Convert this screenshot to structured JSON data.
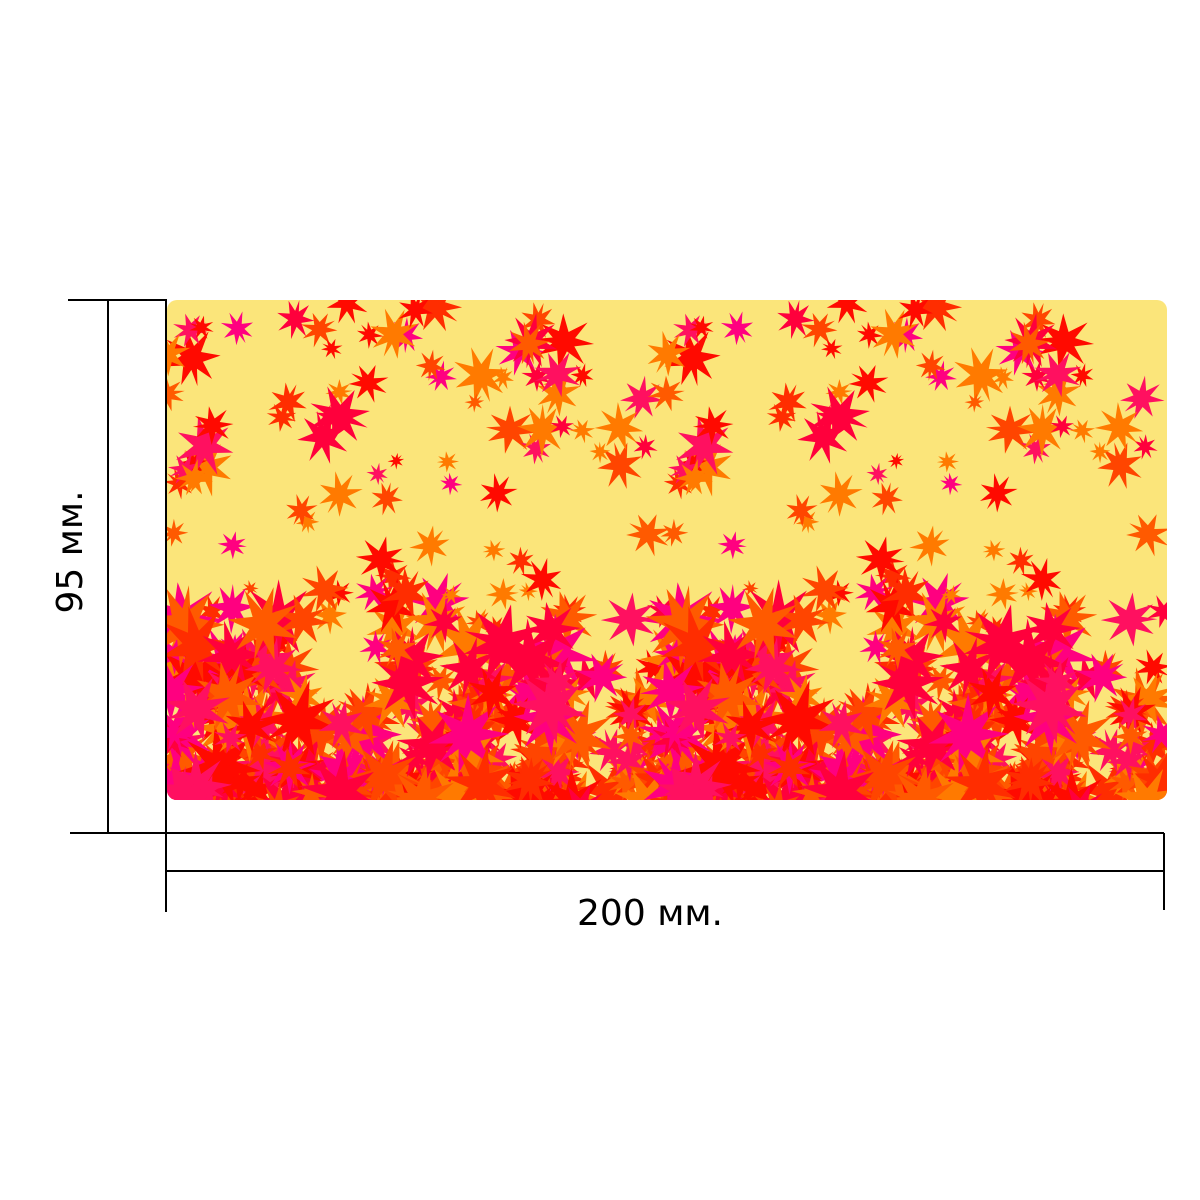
{
  "dimensions": {
    "width_label": "200 мм.",
    "height_label": "95 мм."
  },
  "pattern": {
    "background_color": "#fbe57a",
    "leaf_colors": [
      "#ff0a00",
      "#ff2d00",
      "#ff5a00",
      "#ff7a00",
      "#ff003c",
      "#ff1060",
      "#ff0080",
      "#ff4500"
    ],
    "repeat_count": 2
  }
}
